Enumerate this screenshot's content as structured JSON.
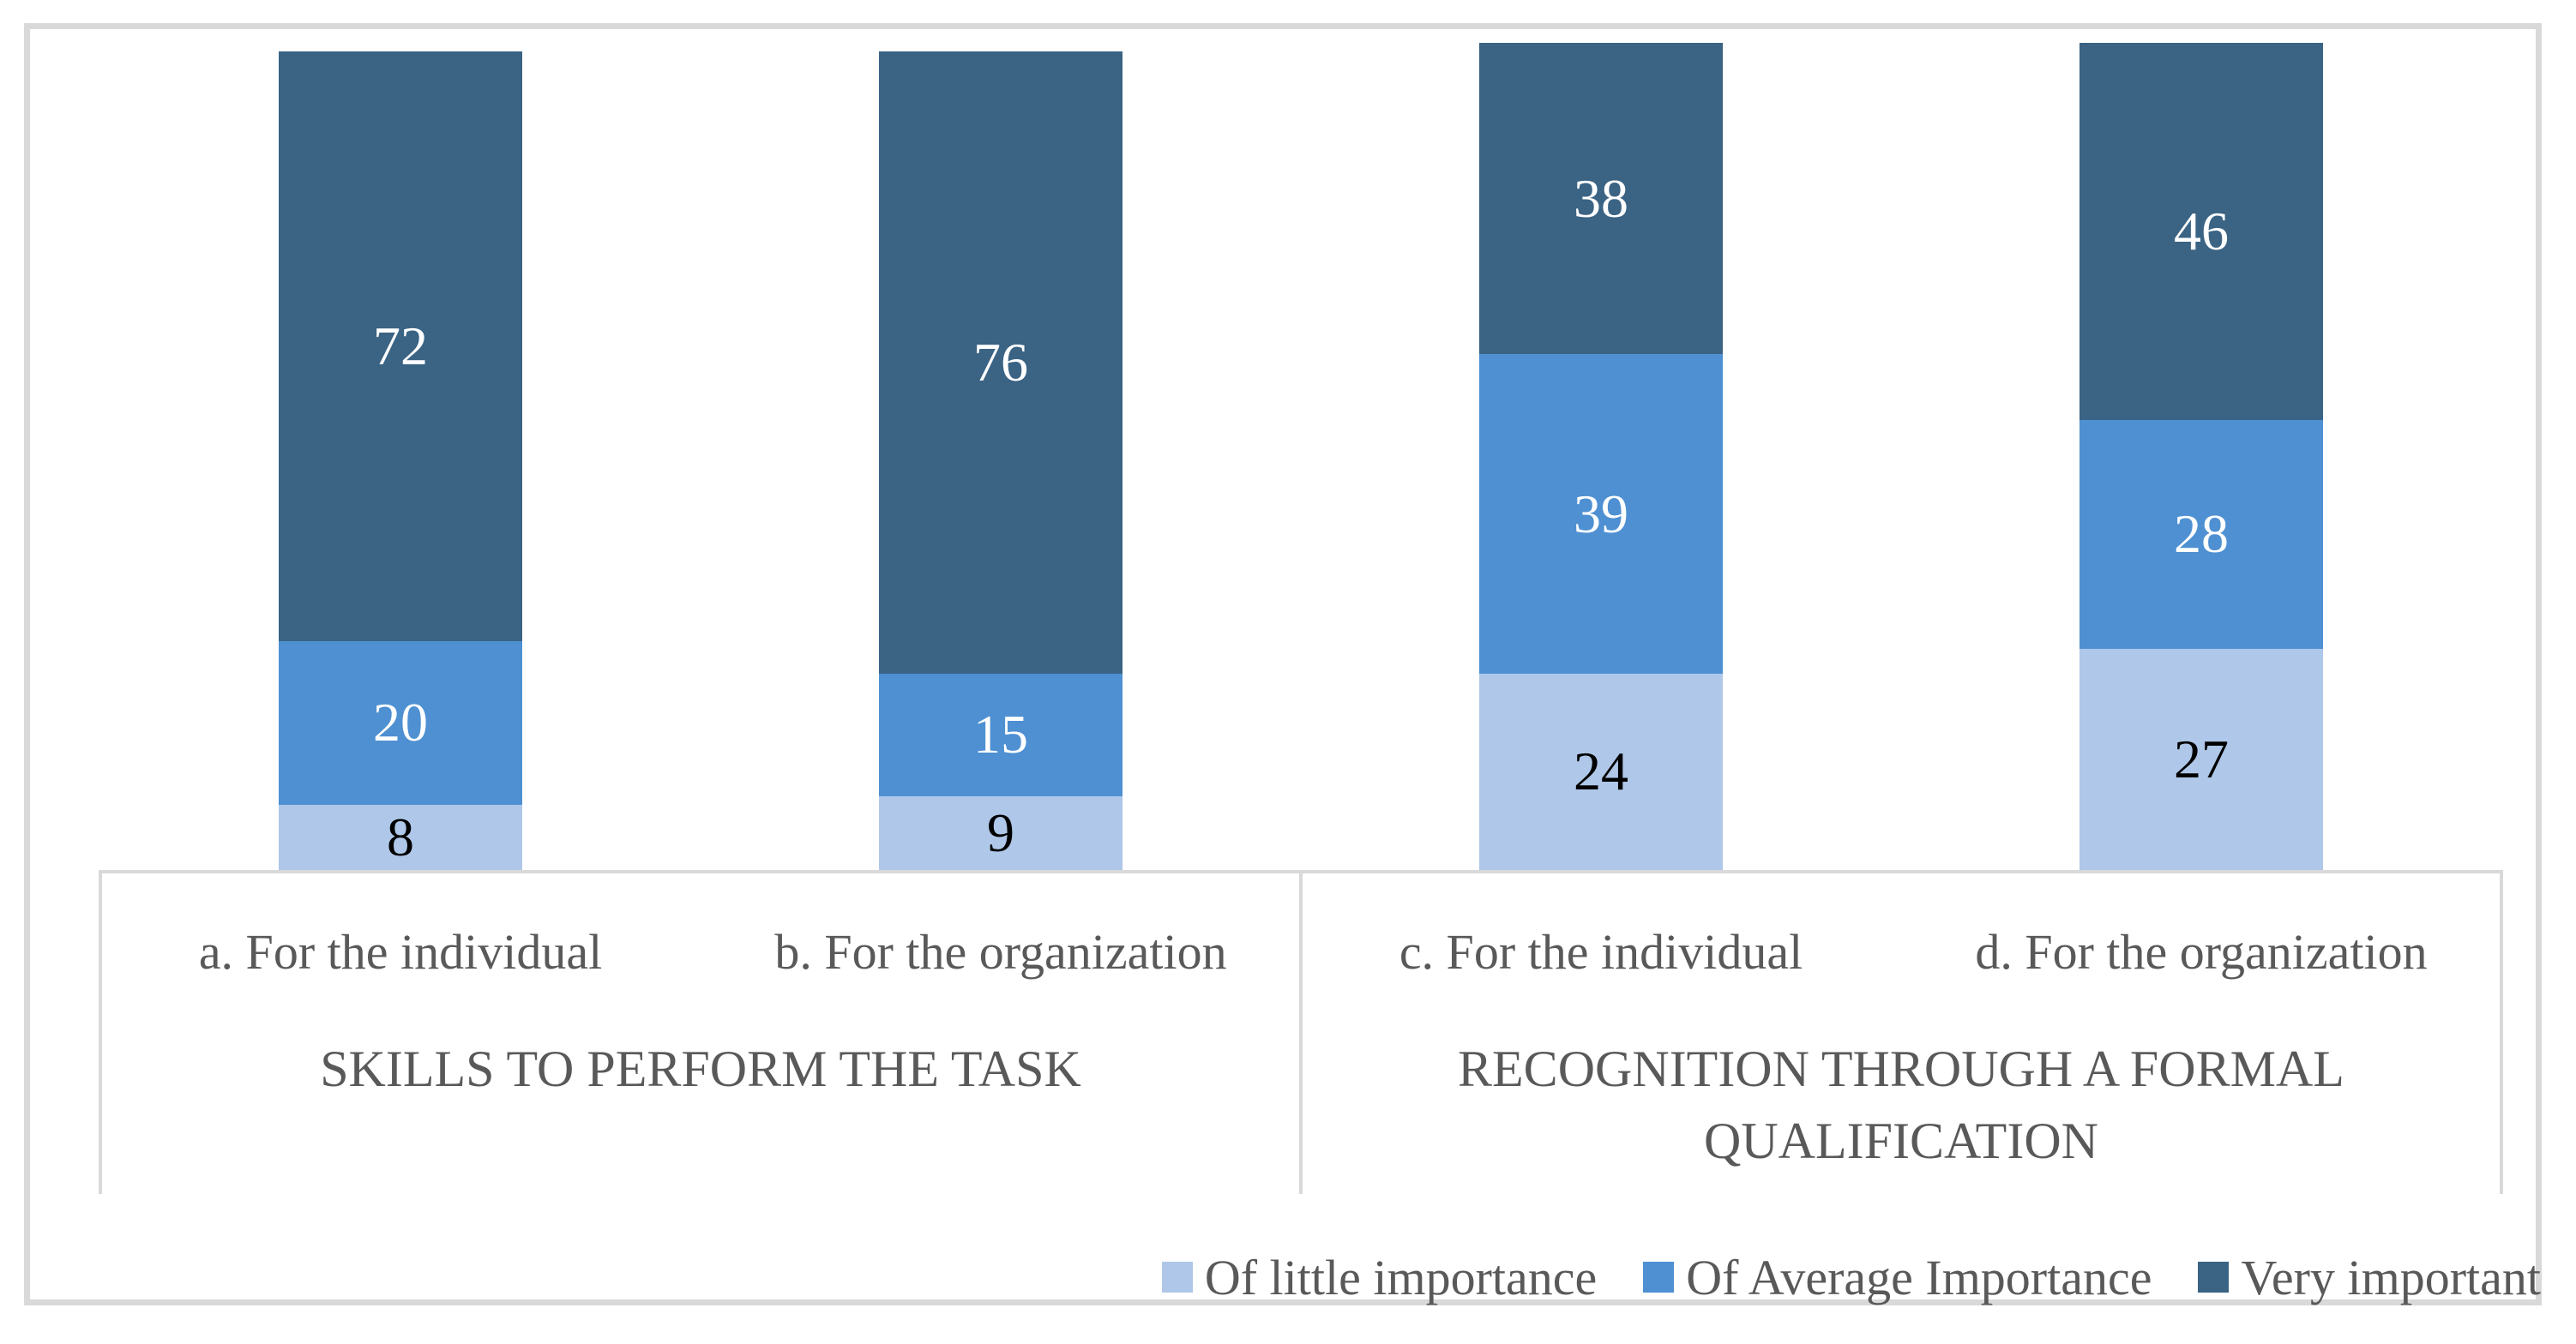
{
  "figure": {
    "background": "#FFFFFF",
    "border_color": "#D9D9D9",
    "text_color": "#595959",
    "axis_line_color": "#D9D9D9"
  },
  "chart_data": {
    "type": "bar",
    "subtype": "stacked-column",
    "title": "",
    "xlabel": "",
    "ylabel": "",
    "ylim": [
      0,
      101
    ],
    "grid": false,
    "data_labels": true,
    "legend_position": "bottom-right",
    "categories": [
      "a. For the individual",
      "b. For the organization",
      "c. For the individual",
      "d. For the organization"
    ],
    "group_labels": [
      {
        "text": "SKILLS TO PERFORM THE TASK",
        "lines": [
          "SKILLS TO PERFORM THE TASK"
        ],
        "category_indexes": [
          0,
          1
        ]
      },
      {
        "text": "RECOGNITION THROUGH A FORMAL QUALIFICATION",
        "lines": [
          "RECOGNITION THROUGH A FORMAL",
          "QUALIFICATION"
        ],
        "category_indexes": [
          2,
          3
        ]
      }
    ],
    "series": [
      {
        "name": "Of little importance",
        "color": "#AFC7E8",
        "label_color": "#000000",
        "values": [
          8,
          9,
          24,
          27
        ]
      },
      {
        "name": "Of Average Importance",
        "color": "#4E90D2",
        "label_color": "#FFFFFF",
        "values": [
          20,
          15,
          39,
          28
        ]
      },
      {
        "name": "Very important",
        "color": "#3A6384",
        "label_color": "#FFFFFF",
        "values": [
          72,
          76,
          38,
          46
        ]
      }
    ]
  }
}
